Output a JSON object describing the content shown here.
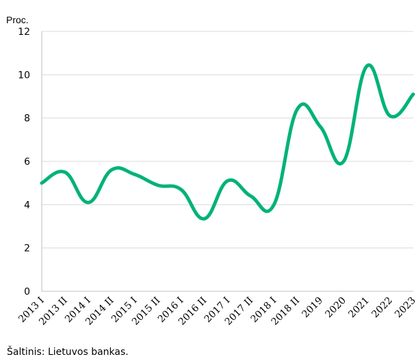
{
  "chart_data": {
    "type": "line",
    "ylabel": "Proc.",
    "ylim": [
      0,
      12
    ],
    "yticks": [
      0,
      2,
      4,
      6,
      8,
      10,
      12
    ],
    "grid": true,
    "categories": [
      "2013 I",
      "2013 II",
      "2014 I",
      "2014 II",
      "2015 I",
      "2015 II",
      "2016 I",
      "2016 II",
      "2017 I",
      "2017 II",
      "2018 I",
      "2018 II",
      "2019",
      "2020",
      "2021",
      "2022",
      "2023"
    ],
    "series": [
      {
        "color": "#00b27a",
        "values": [
          5.0,
          5.5,
          4.1,
          5.6,
          5.4,
          4.9,
          4.7,
          3.35,
          5.1,
          4.4,
          4.0,
          8.4,
          7.6,
          6.0,
          10.4,
          8.1,
          9.1
        ]
      }
    ]
  },
  "source_text": "Šaltinis: Lietuvos bankas."
}
